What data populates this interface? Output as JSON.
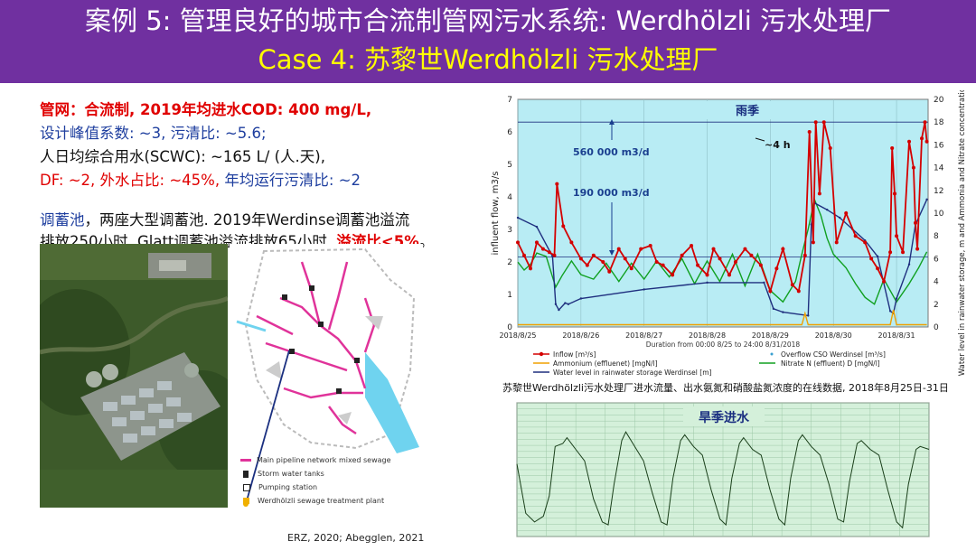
{
  "header": {
    "title_line1": "案例 5: 管理良好的城市合流制管网污水系统: Werdhölzli 污水处理厂",
    "title_line2": "Case 4: 苏黎世Werdhölzli 污水处理厂"
  },
  "text": {
    "line1": "管网：合流制, 2019年均进水COD: 400 mg/L,",
    "line2": "设计峰值系数: ~3, 污清比: ~5.6;",
    "line3": "人日均综合用水(SCWC): ~165 L/ (人.天),",
    "line4_a": "DF: ~2, 外水占比: ~45%, ",
    "line4_b": "年均运行污清比: ~2",
    "para_a": "调蓄池",
    "para_b": "，两座大型调蓄池. 2019年Werdinse调蓄池溢流",
    "para_c": "排放250小时, Glatt调蓄池溢流排放65小时, ",
    "para_d": "溢流比<5%",
    "para_e": "。"
  },
  "map_legend": [
    "Main pipeline network mixed sewage",
    "Storm water tanks",
    "Pumping station",
    "Werdhölzli sewage treatment plant"
  ],
  "citation": "ERZ, 2020;   Abegglen, 2021",
  "chart_caption": "苏黎世Werdhölzli污水处理厂进水流量、出水氨氮和硝酸盐氮浓度的在线数据, 2018年8月25日-31日",
  "colors": {
    "header_bg": "#7030a0",
    "title1": "#ffffff",
    "title2": "#ffff00",
    "plot_bg": "#b8ecf4",
    "dry_bg": "#d4f0da",
    "inflow": "#d40000",
    "water_level": "#1f2f7f",
    "nitrate": "#10a020",
    "ammonium": "#f0a000"
  },
  "chart_data": [
    {
      "type": "line",
      "title": "雨季",
      "xlabel": "Duration from 00:00 8/25 to 24:00  8/31/2018",
      "ylabel": "influent flow, m3/s",
      "y2label": "Water level in rainwater storage, m and Ammonia and Nitrate concentration, mg N/L",
      "ylim": [
        0,
        7
      ],
      "y2lim": [
        0,
        20
      ],
      "yticks": [
        "0",
        "1",
        "2",
        "3",
        "4",
        "5",
        "6",
        "7"
      ],
      "y2ticks": [
        "0",
        "2",
        "4",
        "6",
        "8",
        "10",
        "12",
        "14",
        "16",
        "18",
        "20"
      ],
      "xticks": [
        "2018/8/25",
        "2018/8/26",
        "2018/8/27",
        "2018/8/28",
        "2018/8/29",
        "2018/8/30",
        "2018/8/31"
      ],
      "annotations": [
        "560 000 m3/d",
        "190 000 m3/d",
        "~4 h"
      ],
      "hlines": [
        6.3,
        2.15
      ],
      "series": [
        {
          "name": "Inflow [m³/s]",
          "axis": "left",
          "x": [
            0,
            0.1,
            0.2,
            0.3,
            0.4,
            0.5,
            0.58,
            0.62,
            0.72,
            0.85,
            1.0,
            1.1,
            1.2,
            1.35,
            1.45,
            1.6,
            1.7,
            1.8,
            1.95,
            2.1,
            2.2,
            2.3,
            2.45,
            2.6,
            2.75,
            2.85,
            3.0,
            3.1,
            3.2,
            3.35,
            3.45,
            3.6,
            3.7,
            3.85,
            4.0,
            4.1,
            4.2,
            4.35,
            4.45,
            4.55,
            4.62,
            4.68,
            4.72,
            4.78,
            4.85,
            4.95,
            5.05,
            5.2,
            5.35,
            5.5,
            5.6,
            5.7,
            5.8,
            5.9,
            5.93,
            5.97,
            6.0,
            6.1,
            6.2,
            6.27,
            6.3,
            6.33,
            6.4,
            6.45,
            6.48
          ],
          "values": [
            2.6,
            2.2,
            1.8,
            2.6,
            2.4,
            2.3,
            2.2,
            4.4,
            3.1,
            2.6,
            2.1,
            1.9,
            2.2,
            2.0,
            1.7,
            2.4,
            2.1,
            1.8,
            2.4,
            2.5,
            2.0,
            1.9,
            1.6,
            2.2,
            2.5,
            1.9,
            1.6,
            2.4,
            2.1,
            1.6,
            2.0,
            2.4,
            2.2,
            1.9,
            1.1,
            1.8,
            2.4,
            1.3,
            1.1,
            2.2,
            6.0,
            2.6,
            6.3,
            4.1,
            6.3,
            5.5,
            2.6,
            3.5,
            2.8,
            2.6,
            2.1,
            1.8,
            1.4,
            2.3,
            5.5,
            4.1,
            2.8,
            2.3,
            5.7,
            4.9,
            3.2,
            2.4,
            5.8,
            6.3,
            5.7
          ]
        },
        {
          "name": "Ammonium (effluenet) [mgN/l]",
          "axis": "right",
          "x": [
            0,
            1,
            2,
            3,
            4,
            4.5,
            4.55,
            4.6,
            5,
            5.9,
            5.95,
            6.0,
            6.48
          ],
          "values": [
            0.2,
            0.2,
            0.2,
            0.2,
            0.2,
            0.2,
            1.2,
            0.2,
            0.2,
            0.2,
            1.5,
            0.2,
            0.2
          ]
        },
        {
          "name": "Water level in rainwater storage Werdinsel [m]",
          "axis": "right",
          "x": [
            0,
            0.3,
            0.55,
            0.6,
            0.65,
            0.75,
            0.8,
            1.0,
            2.0,
            3.0,
            3.9,
            4.05,
            4.2,
            4.6,
            4.65,
            4.7,
            4.9,
            5.1,
            5.3,
            5.5,
            5.7,
            5.9,
            5.95,
            6.0,
            6.2,
            6.3,
            6.48
          ],
          "values": [
            9.6,
            8.8,
            6.2,
            2.0,
            1.5,
            2.1,
            2.0,
            2.5,
            3.3,
            3.9,
            3.9,
            1.6,
            1.3,
            1.0,
            9.0,
            10.9,
            10.3,
            9.6,
            8.6,
            7.6,
            6.2,
            1.4,
            1.2,
            2.5,
            5.5,
            9.0,
            11.2
          ]
        },
        {
          "name": "Nitrate N (effluent) D [mgN/l]",
          "axis": "right",
          "x": [
            0,
            0.1,
            0.2,
            0.3,
            0.45,
            0.6,
            0.7,
            0.85,
            1.0,
            1.2,
            1.4,
            1.6,
            1.8,
            2.0,
            2.2,
            2.4,
            2.6,
            2.8,
            3.0,
            3.2,
            3.4,
            3.6,
            3.8,
            4.0,
            4.2,
            4.4,
            4.5,
            4.6,
            4.7,
            4.8,
            4.9,
            5.0,
            5.2,
            5.35,
            5.5,
            5.65,
            5.8,
            6.0,
            6.2,
            6.35,
            6.48
          ],
          "values": [
            5.7,
            5.0,
            5.5,
            6.5,
            6.2,
            3.5,
            4.5,
            5.8,
            4.6,
            4.2,
            5.6,
            4.0,
            5.6,
            4.2,
            5.8,
            4.4,
            6.0,
            3.8,
            5.8,
            4.0,
            6.4,
            3.6,
            6.4,
            3.2,
            2.2,
            4.0,
            6.4,
            8.6,
            11.2,
            9.8,
            7.8,
            6.4,
            5.2,
            3.8,
            2.6,
            2.0,
            4.2,
            2.2,
            3.8,
            5.2,
            6.6
          ]
        }
      ],
      "legend_position": "bottom"
    },
    {
      "type": "line",
      "title": "旱季进水",
      "series": [
        {
          "name": "",
          "x": [
            0,
            0.15,
            0.3,
            0.45,
            0.55,
            0.65,
            0.78,
            0.85,
            1.0,
            1.15,
            1.3,
            1.45,
            1.55,
            1.65,
            1.78,
            1.85,
            2.0,
            2.15,
            2.3,
            2.45,
            2.55,
            2.65,
            2.78,
            2.85,
            3.0,
            3.15,
            3.3,
            3.45,
            3.55,
            3.65,
            3.78,
            3.85,
            4.0,
            4.15,
            4.3,
            4.45,
            4.55,
            4.65,
            4.78,
            4.85,
            5.0,
            5.15,
            5.3,
            5.45,
            5.55,
            5.65,
            5.78,
            5.85,
            6.0,
            6.15,
            6.3,
            6.45,
            6.55,
            6.65,
            6.78,
            6.85,
            7.0
          ],
          "values": [
            1.55,
            0.7,
            0.55,
            0.65,
            1.0,
            1.85,
            1.9,
            2.0,
            1.8,
            1.6,
            0.95,
            0.55,
            0.5,
            1.2,
            1.95,
            2.1,
            1.85,
            1.6,
            1.05,
            0.55,
            0.5,
            1.3,
            1.95,
            2.05,
            1.85,
            1.7,
            1.1,
            0.6,
            0.5,
            1.3,
            1.9,
            2.0,
            1.8,
            1.7,
            1.1,
            0.6,
            0.5,
            1.3,
            1.95,
            2.05,
            1.85,
            1.7,
            1.2,
            0.6,
            0.55,
            1.25,
            1.9,
            1.95,
            1.8,
            1.7,
            1.1,
            0.55,
            0.45,
            1.2,
            1.8,
            1.85,
            1.8
          ]
        }
      ]
    }
  ]
}
